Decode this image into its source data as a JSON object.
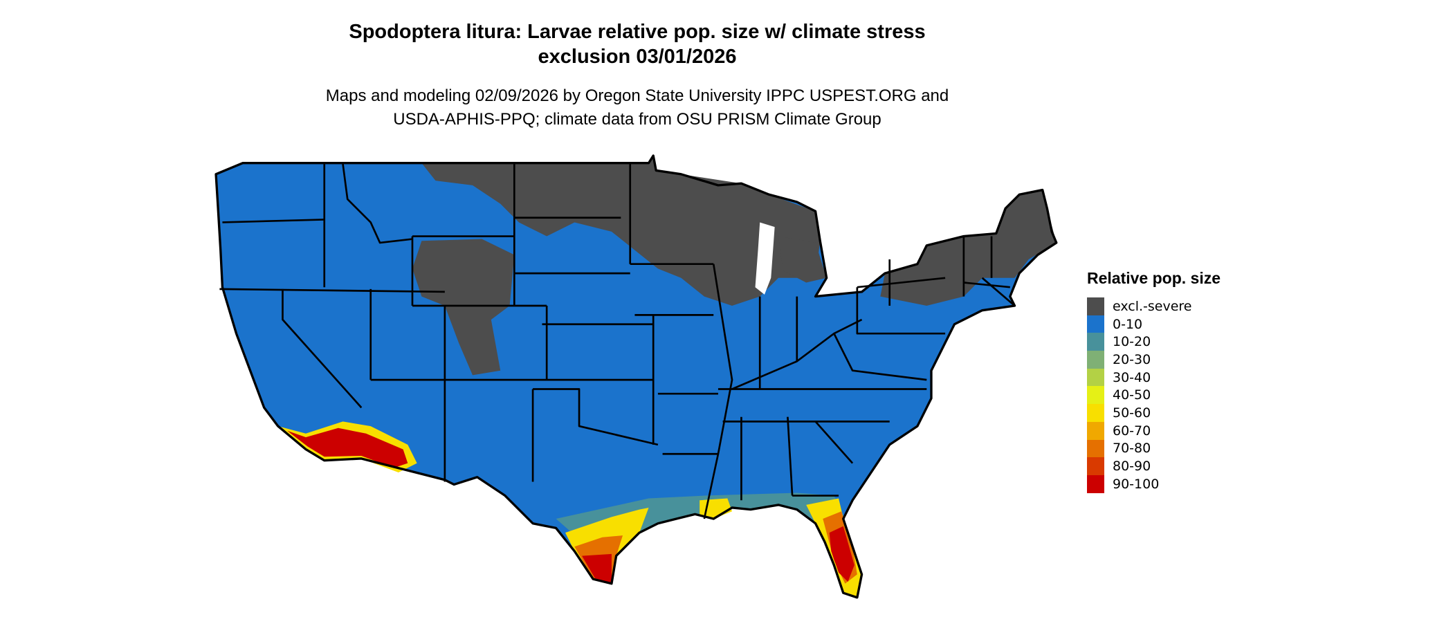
{
  "title": {
    "line1": "Spodoptera litura: Larvae relative pop. size w/ climate stress",
    "line2": "exclusion 03/01/2026"
  },
  "subtitle": {
    "line1": "Maps and modeling 02/09/2026 by Oregon State University IPPC USPEST.ORG and",
    "line2": "USDA-APHIS-PPQ; climate data from OSU PRISM Climate Group"
  },
  "legend": {
    "title": "Relative pop. size",
    "items": [
      {
        "label": "excl.-severe",
        "color": "#4d4d4d"
      },
      {
        "label": "0-10",
        "color": "#1b73cc"
      },
      {
        "label": "10-20",
        "color": "#48919b"
      },
      {
        "label": "20-30",
        "color": "#7fb075"
      },
      {
        "label": "30-40",
        "color": "#b3d145"
      },
      {
        "label": "40-50",
        "color": "#e5f016"
      },
      {
        "label": "50-60",
        "color": "#f8df00"
      },
      {
        "label": "60-70",
        "color": "#f0a800"
      },
      {
        "label": "70-80",
        "color": "#e57000"
      },
      {
        "label": "80-90",
        "color": "#d93a00"
      },
      {
        "label": "90-100",
        "color": "#cc0000"
      }
    ]
  },
  "map": {
    "region": "Contiguous United States",
    "boundary_color": "#000000",
    "background": "#ffffff"
  }
}
